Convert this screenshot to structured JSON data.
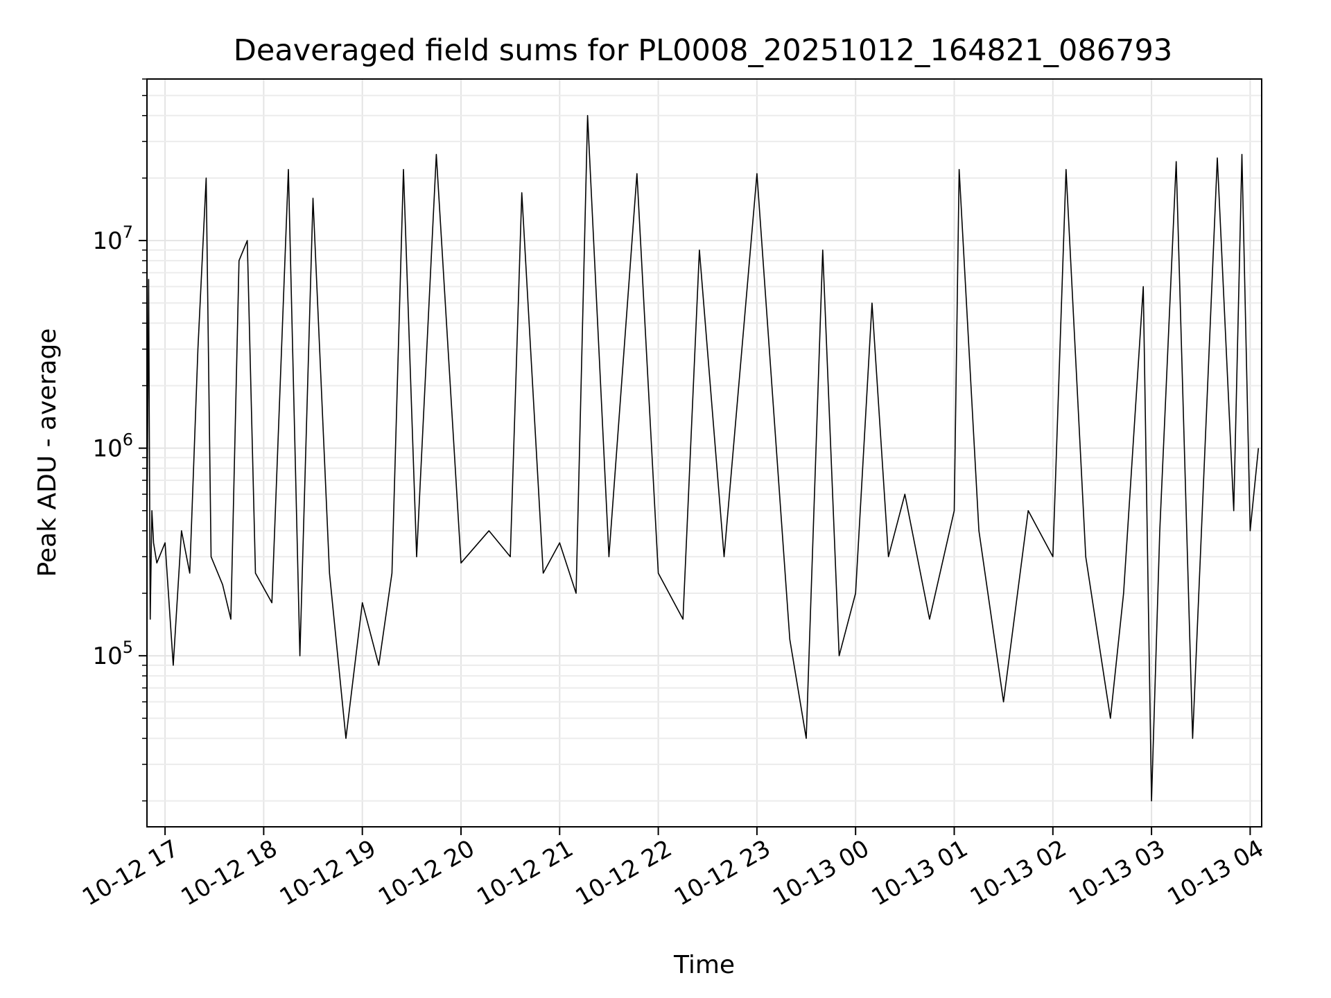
{
  "chart_data": {
    "type": "line",
    "title": "Deaveraged field sums for PL0008_20251012_164821_086793",
    "xlabel": "Time",
    "ylabel": "Peak ADU - average",
    "yscale": "log",
    "grid": true,
    "line_color": "#000000",
    "xlim": [
      "2025-10-12 16:49",
      "2025-10-13 04:07"
    ],
    "ylim": [
      15000,
      60000000
    ],
    "x_ticks": [
      "10-12 17",
      "10-12 18",
      "10-12 19",
      "10-12 20",
      "10-12 21",
      "10-12 22",
      "10-12 23",
      "10-13 00",
      "10-13 01",
      "10-13 02",
      "10-13 03",
      "10-13 04"
    ],
    "y_ticks": [
      {
        "base": "10",
        "exp": "5"
      },
      {
        "base": "10",
        "exp": "6"
      },
      {
        "base": "10",
        "exp": "7"
      }
    ],
    "series": [
      {
        "x": [
          "2025-10-12 16:49",
          "2025-10-12 16:50",
          "2025-10-12 16:51",
          "2025-10-12 16:52",
          "2025-10-12 16:53",
          "2025-10-12 16:55",
          "2025-10-12 17:00",
          "2025-10-12 17:05",
          "2025-10-12 17:10",
          "2025-10-12 17:15",
          "2025-10-12 17:20",
          "2025-10-12 17:25",
          "2025-10-12 17:28",
          "2025-10-12 17:35",
          "2025-10-12 17:40",
          "2025-10-12 17:45",
          "2025-10-12 17:50",
          "2025-10-12 17:55",
          "2025-10-12 18:05",
          "2025-10-12 18:15",
          "2025-10-12 18:22",
          "2025-10-12 18:30",
          "2025-10-12 18:40",
          "2025-10-12 18:50",
          "2025-10-12 19:00",
          "2025-10-12 19:10",
          "2025-10-12 19:18",
          "2025-10-12 19:25",
          "2025-10-12 19:33",
          "2025-10-12 19:45",
          "2025-10-12 20:00",
          "2025-10-12 20:17",
          "2025-10-12 20:30",
          "2025-10-12 20:37",
          "2025-10-12 20:50",
          "2025-10-12 21:00",
          "2025-10-12 21:10",
          "2025-10-12 21:17",
          "2025-10-12 21:30",
          "2025-10-12 21:47",
          "2025-10-12 22:00",
          "2025-10-12 22:15",
          "2025-10-12 22:25",
          "2025-10-12 22:40",
          "2025-10-12 23:00",
          "2025-10-12 23:20",
          "2025-10-12 23:30",
          "2025-10-12 23:40",
          "2025-10-12 23:50",
          "2025-10-13 00:00",
          "2025-10-13 00:10",
          "2025-10-13 00:20",
          "2025-10-13 00:30",
          "2025-10-13 00:45",
          "2025-10-13 01:00",
          "2025-10-13 01:03",
          "2025-10-13 01:15",
          "2025-10-13 01:30",
          "2025-10-13 01:45",
          "2025-10-13 02:00",
          "2025-10-13 02:08",
          "2025-10-13 02:20",
          "2025-10-13 02:35",
          "2025-10-13 02:43",
          "2025-10-13 02:55",
          "2025-10-13 03:00",
          "2025-10-13 03:05",
          "2025-10-13 03:15",
          "2025-10-13 03:25",
          "2025-10-13 03:40",
          "2025-10-13 03:50",
          "2025-10-13 03:55",
          "2025-10-13 04:00",
          "2025-10-13 04:05"
        ],
        "y": [
          400000,
          6500000,
          150000,
          500000,
          350000,
          280000,
          350000,
          90000,
          400000,
          250000,
          3000000,
          20000000,
          300000,
          220000,
          150000,
          8000000,
          10000000,
          250000,
          180000,
          22000000,
          100000,
          16000000,
          250000,
          40000,
          180000,
          90000,
          250000,
          22000000,
          300000,
          26000000,
          280000,
          400000,
          300000,
          17000000,
          250000,
          350000,
          200000,
          40000000,
          300000,
          21000000,
          250000,
          150000,
          9000000,
          300000,
          21000000,
          120000,
          40000,
          9000000,
          100000,
          200000,
          5000000,
          300000,
          600000,
          150000,
          500000,
          22000000,
          400000,
          60000,
          500000,
          300000,
          22000000,
          300000,
          50000,
          200000,
          6000000,
          20000,
          400000,
          24000000,
          40000,
          25000000,
          500000,
          26000000,
          400000,
          1000000
        ]
      }
    ]
  }
}
